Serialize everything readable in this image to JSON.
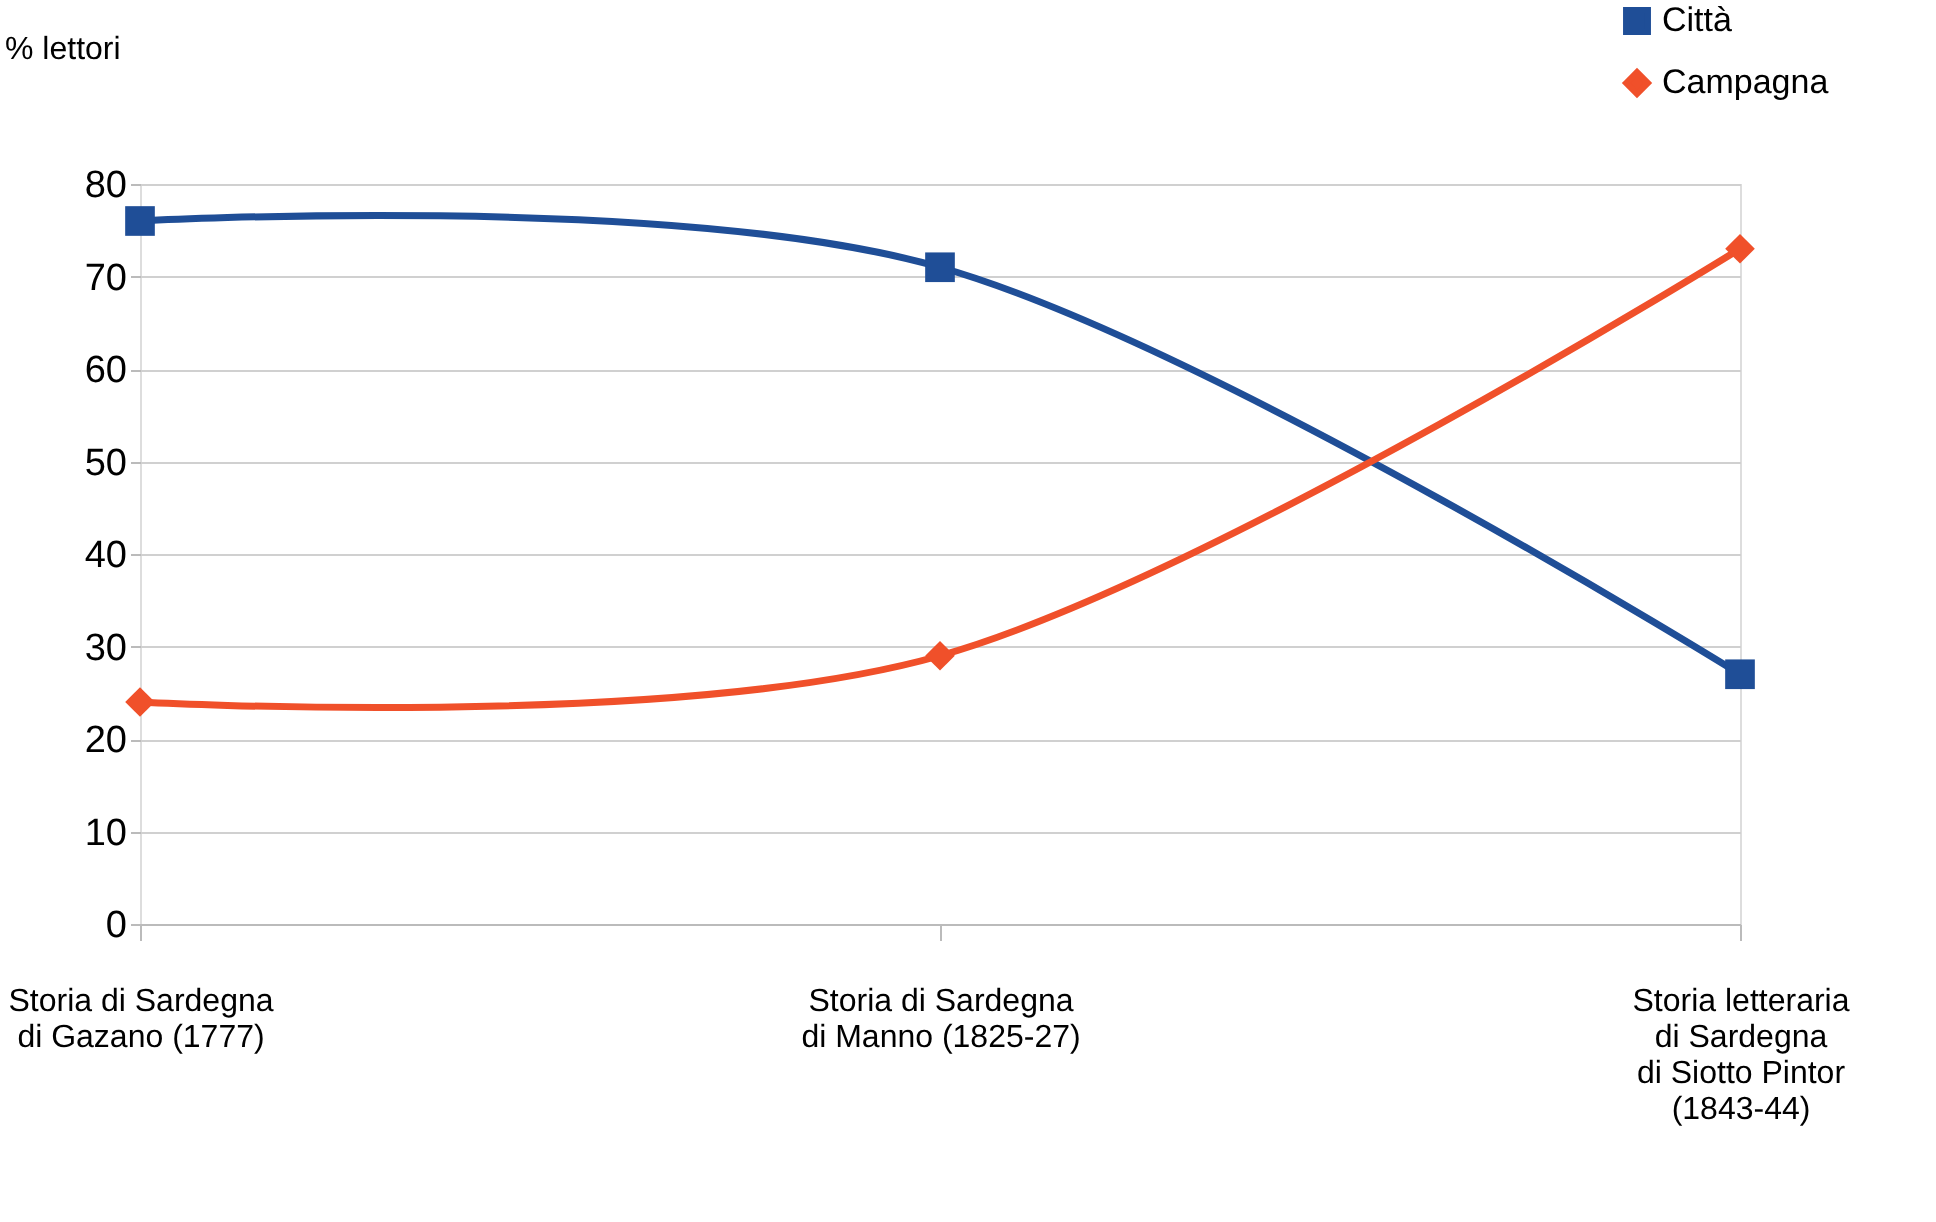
{
  "chart_data": {
    "type": "line",
    "ylabel": "% lettori",
    "categories": [
      "Storia di Sardegna\ndi Gazano (1777)",
      "Storia di Sardegna\ndi Manno (1825-27)",
      "Storia letteraria\ndi Sardegna\ndi Siotto Pintor\n(1843-44)"
    ],
    "series": [
      {
        "name": "Città",
        "color": "#1f4e97",
        "marker": "square",
        "values": [
          76,
          71,
          27
        ]
      },
      {
        "name": "Campagna",
        "color": "#f0502a",
        "marker": "diamond",
        "values": [
          24,
          29,
          73
        ]
      }
    ],
    "ylim": [
      0,
      80
    ],
    "yticks": [
      0,
      10,
      20,
      30,
      40,
      50,
      60,
      70,
      80
    ],
    "grid": "y",
    "legend": "top right",
    "line_style": "solid"
  }
}
